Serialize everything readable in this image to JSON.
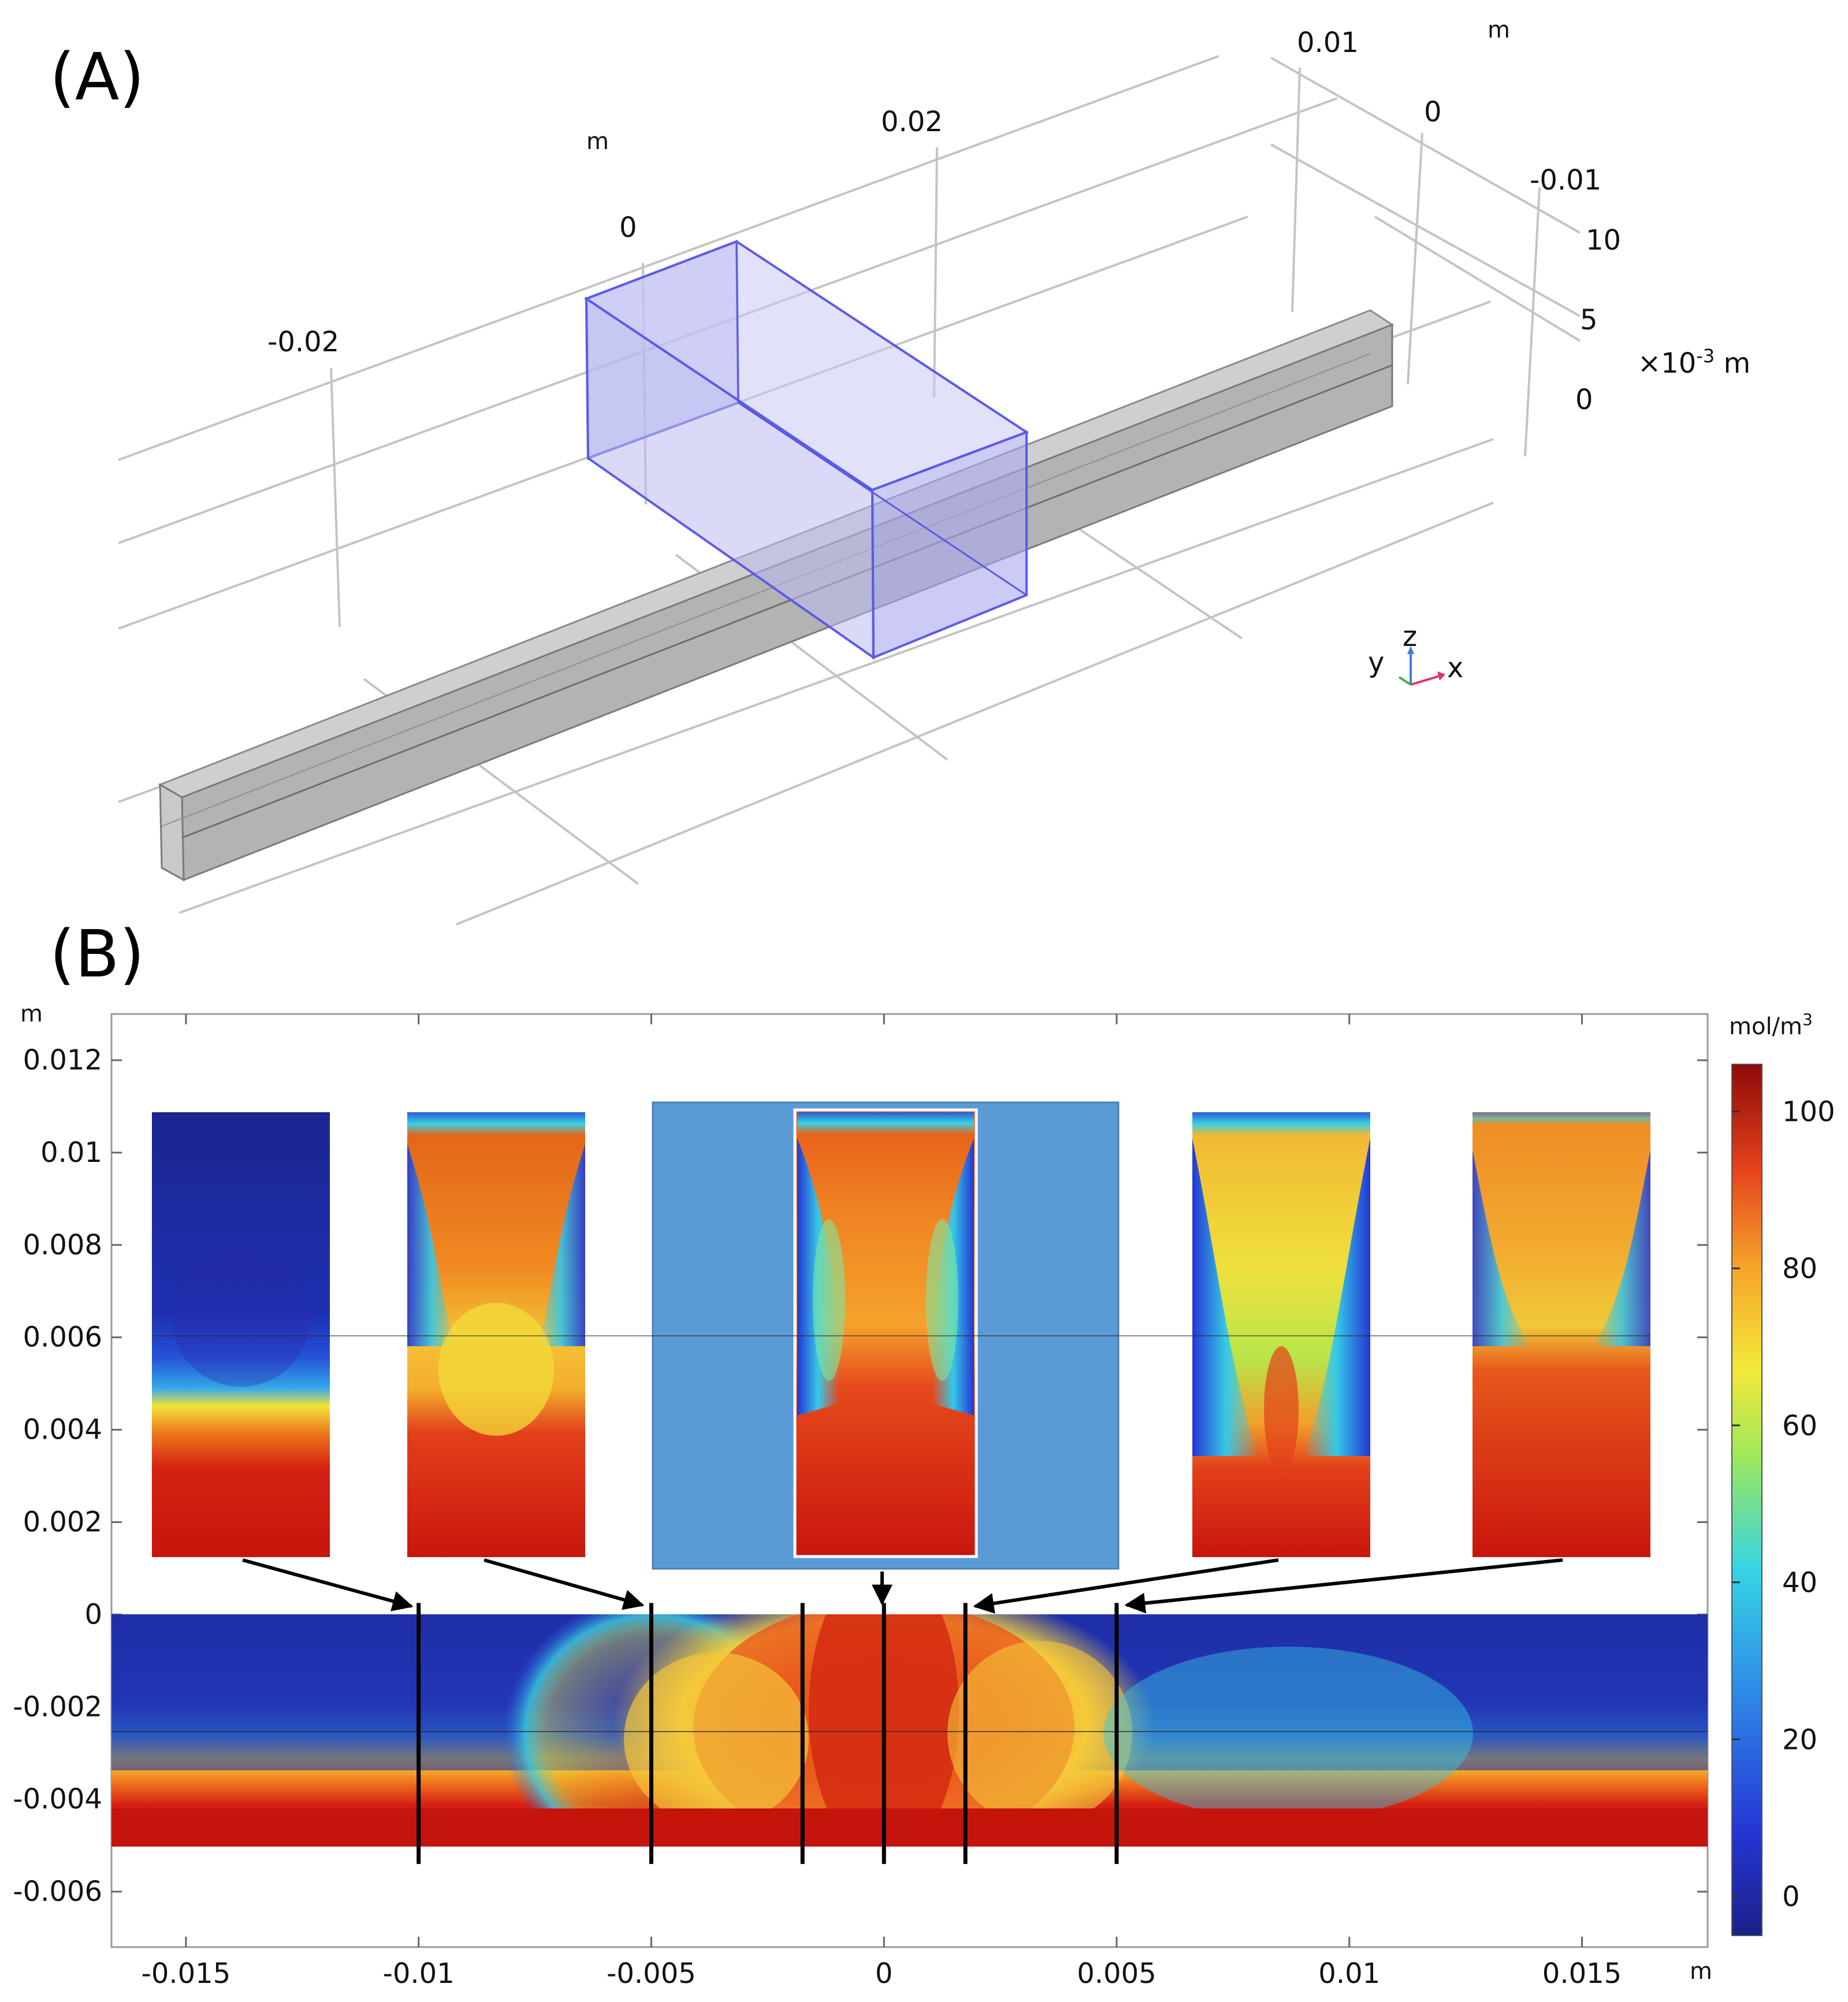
{
  "panel_a": {
    "label": "(A)",
    "x_axis_unit": "m",
    "x_ticks": [
      "-0.02",
      "0",
      "0.02"
    ],
    "y_axis_unit": "m",
    "y_ticks": [
      "0.01",
      "0",
      "-0.01"
    ],
    "z_ticks": [
      "10",
      "5",
      "0"
    ],
    "z_unit_prefix": "×10",
    "z_unit_exp": "-3",
    "z_unit_suffix": " m",
    "triad": {
      "x": "x",
      "y": "y",
      "z": "z",
      "x_color": "#e0306a",
      "y_color": "#3fae49",
      "z_color": "#3d7fd6"
    },
    "colors": {
      "box": "#7a7af0",
      "channel": "#bdbdbd",
      "grid": "#c8c8c8"
    }
  },
  "panel_b": {
    "label": "(B)",
    "y_axis_unit": "m",
    "x_axis_unit": "m",
    "colorbar_unit_base": "mol/m",
    "colorbar_unit_exp": "3",
    "colorbar_ticks": [
      "100",
      "80",
      "60",
      "40",
      "20",
      "0"
    ],
    "colorbar_range": [
      -5,
      106
    ],
    "background_highlight": "#5b9bd5"
  },
  "chart_data": {
    "type": "heatmap",
    "xlabel": "m",
    "ylabel": "m",
    "xlim": [
      -0.0166,
      0.0177
    ],
    "ylim": [
      -0.0072,
      0.013
    ],
    "x_ticks": [
      "-0.015",
      "-0.01",
      "-0.005",
      "0",
      "0.005",
      "0.01",
      "0.015"
    ],
    "y_ticks": [
      "0.012",
      "0.01",
      "0.008",
      "0.006",
      "0.004",
      "0.002",
      "0",
      "-0.002",
      "-0.004",
      "-0.006"
    ],
    "colorbar": {
      "label": "mol/m3",
      "range": [
        -5,
        106
      ],
      "ticks": [
        0,
        20,
        40,
        60,
        80,
        100
      ]
    },
    "channel_section": {
      "x": [
        -0.0166,
        0.0177
      ],
      "y": [
        -0.005,
        0
      ],
      "interface_y": -0.0025
    },
    "cut_lines_x": [
      -0.01,
      -0.005,
      -0.00175,
      0,
      0.00175,
      0.005
    ],
    "insets": [
      {
        "cut_x": -0.01,
        "profile": "mostly-depleted"
      },
      {
        "cut_x": -0.005,
        "profile": "high-with-plume"
      },
      {
        "cut_x": 0,
        "profile": "center-highlighted"
      },
      {
        "cut_x": 0.00175,
        "profile": "mixed"
      },
      {
        "cut_x": 0.005,
        "profile": "high-mostly-mixed"
      }
    ]
  }
}
